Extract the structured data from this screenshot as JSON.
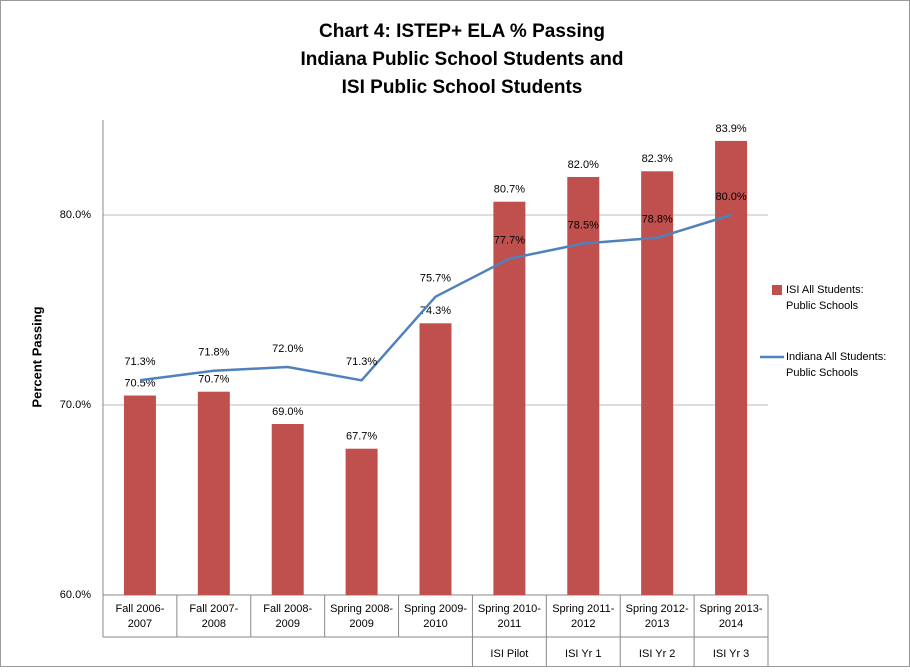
{
  "chart_data": {
    "type": "bar_line",
    "title": [
      "Chart 4: ISTEP+ ELA % Passing",
      "Indiana Public School Students and",
      "ISI Public School Students"
    ],
    "y_label": "Percent Passing",
    "categories": [
      [
        "Fall 2006-",
        "2007"
      ],
      [
        "Fall 2007-",
        "2008"
      ],
      [
        "Fall 2008-",
        "2009"
      ],
      [
        "Spring 2008-",
        "2009"
      ],
      [
        "Spring 2009-",
        "2010"
      ],
      [
        "Spring 2010-",
        "2011"
      ],
      [
        "Spring 2011-",
        "2012"
      ],
      [
        "Spring 2012-",
        "2013"
      ],
      [
        "Spring 2013-",
        "2014"
      ]
    ],
    "group_labels": [
      null,
      null,
      null,
      null,
      null,
      "ISI Pilot",
      "ISI Yr 1",
      "ISI Yr 2",
      "ISI Yr 3"
    ],
    "series": [
      {
        "name": [
          "ISI All Students:",
          "Public Schools"
        ],
        "kind": "bar",
        "color": "#c0504d",
        "values": [
          70.5,
          70.7,
          69.0,
          67.7,
          74.3,
          80.7,
          82.0,
          82.3,
          83.9
        ],
        "value_labels": [
          "70.5%",
          "70.7%",
          "69.0%",
          "67.7%",
          "74.3%",
          "80.7%",
          "82.0%",
          "82.3%",
          "83.9%"
        ]
      },
      {
        "name": [
          "Indiana All Students:",
          "Public Schools"
        ],
        "kind": "line",
        "color": "#4f81bd",
        "values": [
          71.3,
          71.8,
          72.0,
          71.3,
          75.7,
          77.7,
          78.5,
          78.8,
          80.0
        ],
        "value_labels": [
          "71.3%",
          "71.8%",
          "72.0%",
          "71.3%",
          "75.7%",
          "77.7%",
          "78.5%",
          "78.8%",
          "80.0%"
        ]
      }
    ],
    "ylim": [
      60,
      85
    ],
    "yticks": [
      {
        "value": 60,
        "label": "60.0%"
      },
      {
        "value": 70,
        "label": "70.0%"
      },
      {
        "value": 80,
        "label": "80.0%"
      }
    ],
    "grid": true,
    "legend": "right"
  }
}
